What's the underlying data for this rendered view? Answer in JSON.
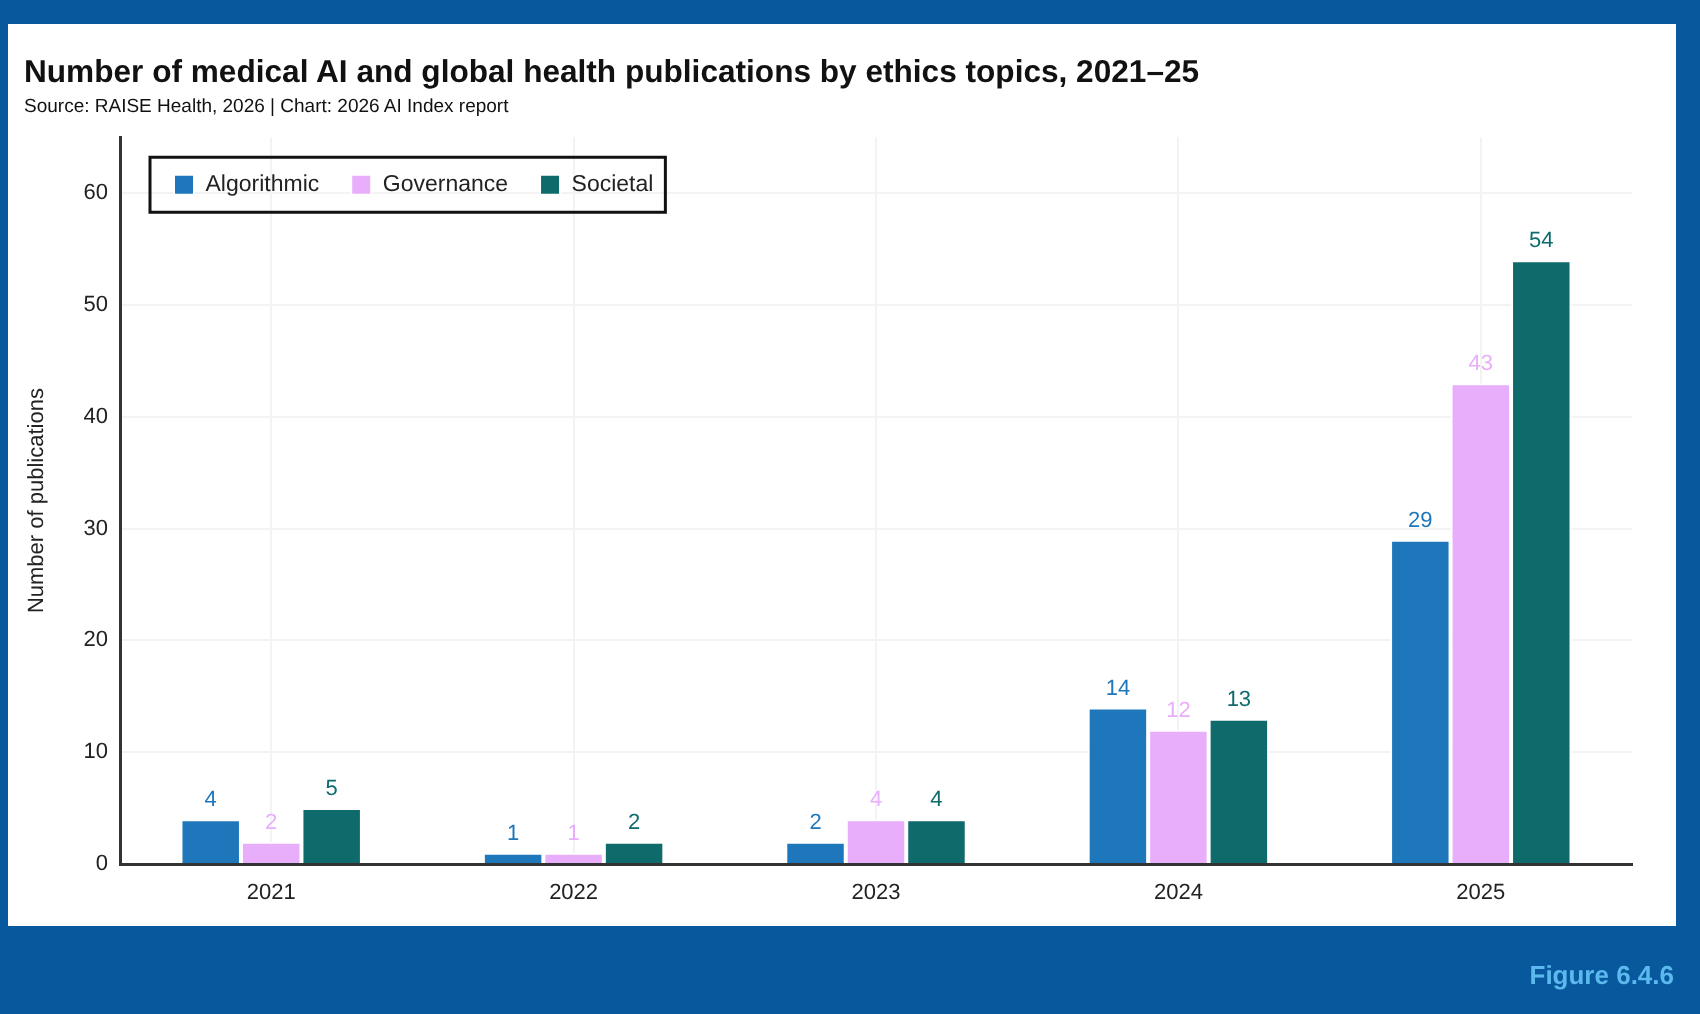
{
  "chart_data": {
    "type": "bar",
    "title": "Number of medical AI and global health publications by ethics topics, 2021–25",
    "subtitle": "Source: RAISE Health, 2026 | Chart: 2026 AI Index report",
    "ylabel": "Number of publications",
    "annotations": [
      "Figure 6.4.6"
    ],
    "categories": [
      "2021",
      "2022",
      "2023",
      "2024",
      "2025"
    ],
    "series": [
      {
        "name": "Algorithmic",
        "color": "#1f77bb",
        "values": [
          4,
          1,
          2,
          14,
          29
        ]
      },
      {
        "name": "Governance",
        "color": "#e8aefb",
        "values": [
          2,
          1,
          4,
          12,
          43
        ]
      },
      {
        "name": "Societal",
        "color": "#0e6a6b",
        "values": [
          5,
          2,
          4,
          13,
          54
        ]
      }
    ],
    "ylim": [
      0,
      65
    ],
    "yticks": [
      0,
      10,
      20,
      30,
      40,
      50,
      60
    ],
    "grid": true,
    "legend": "top left",
    "data_labels": true
  }
}
